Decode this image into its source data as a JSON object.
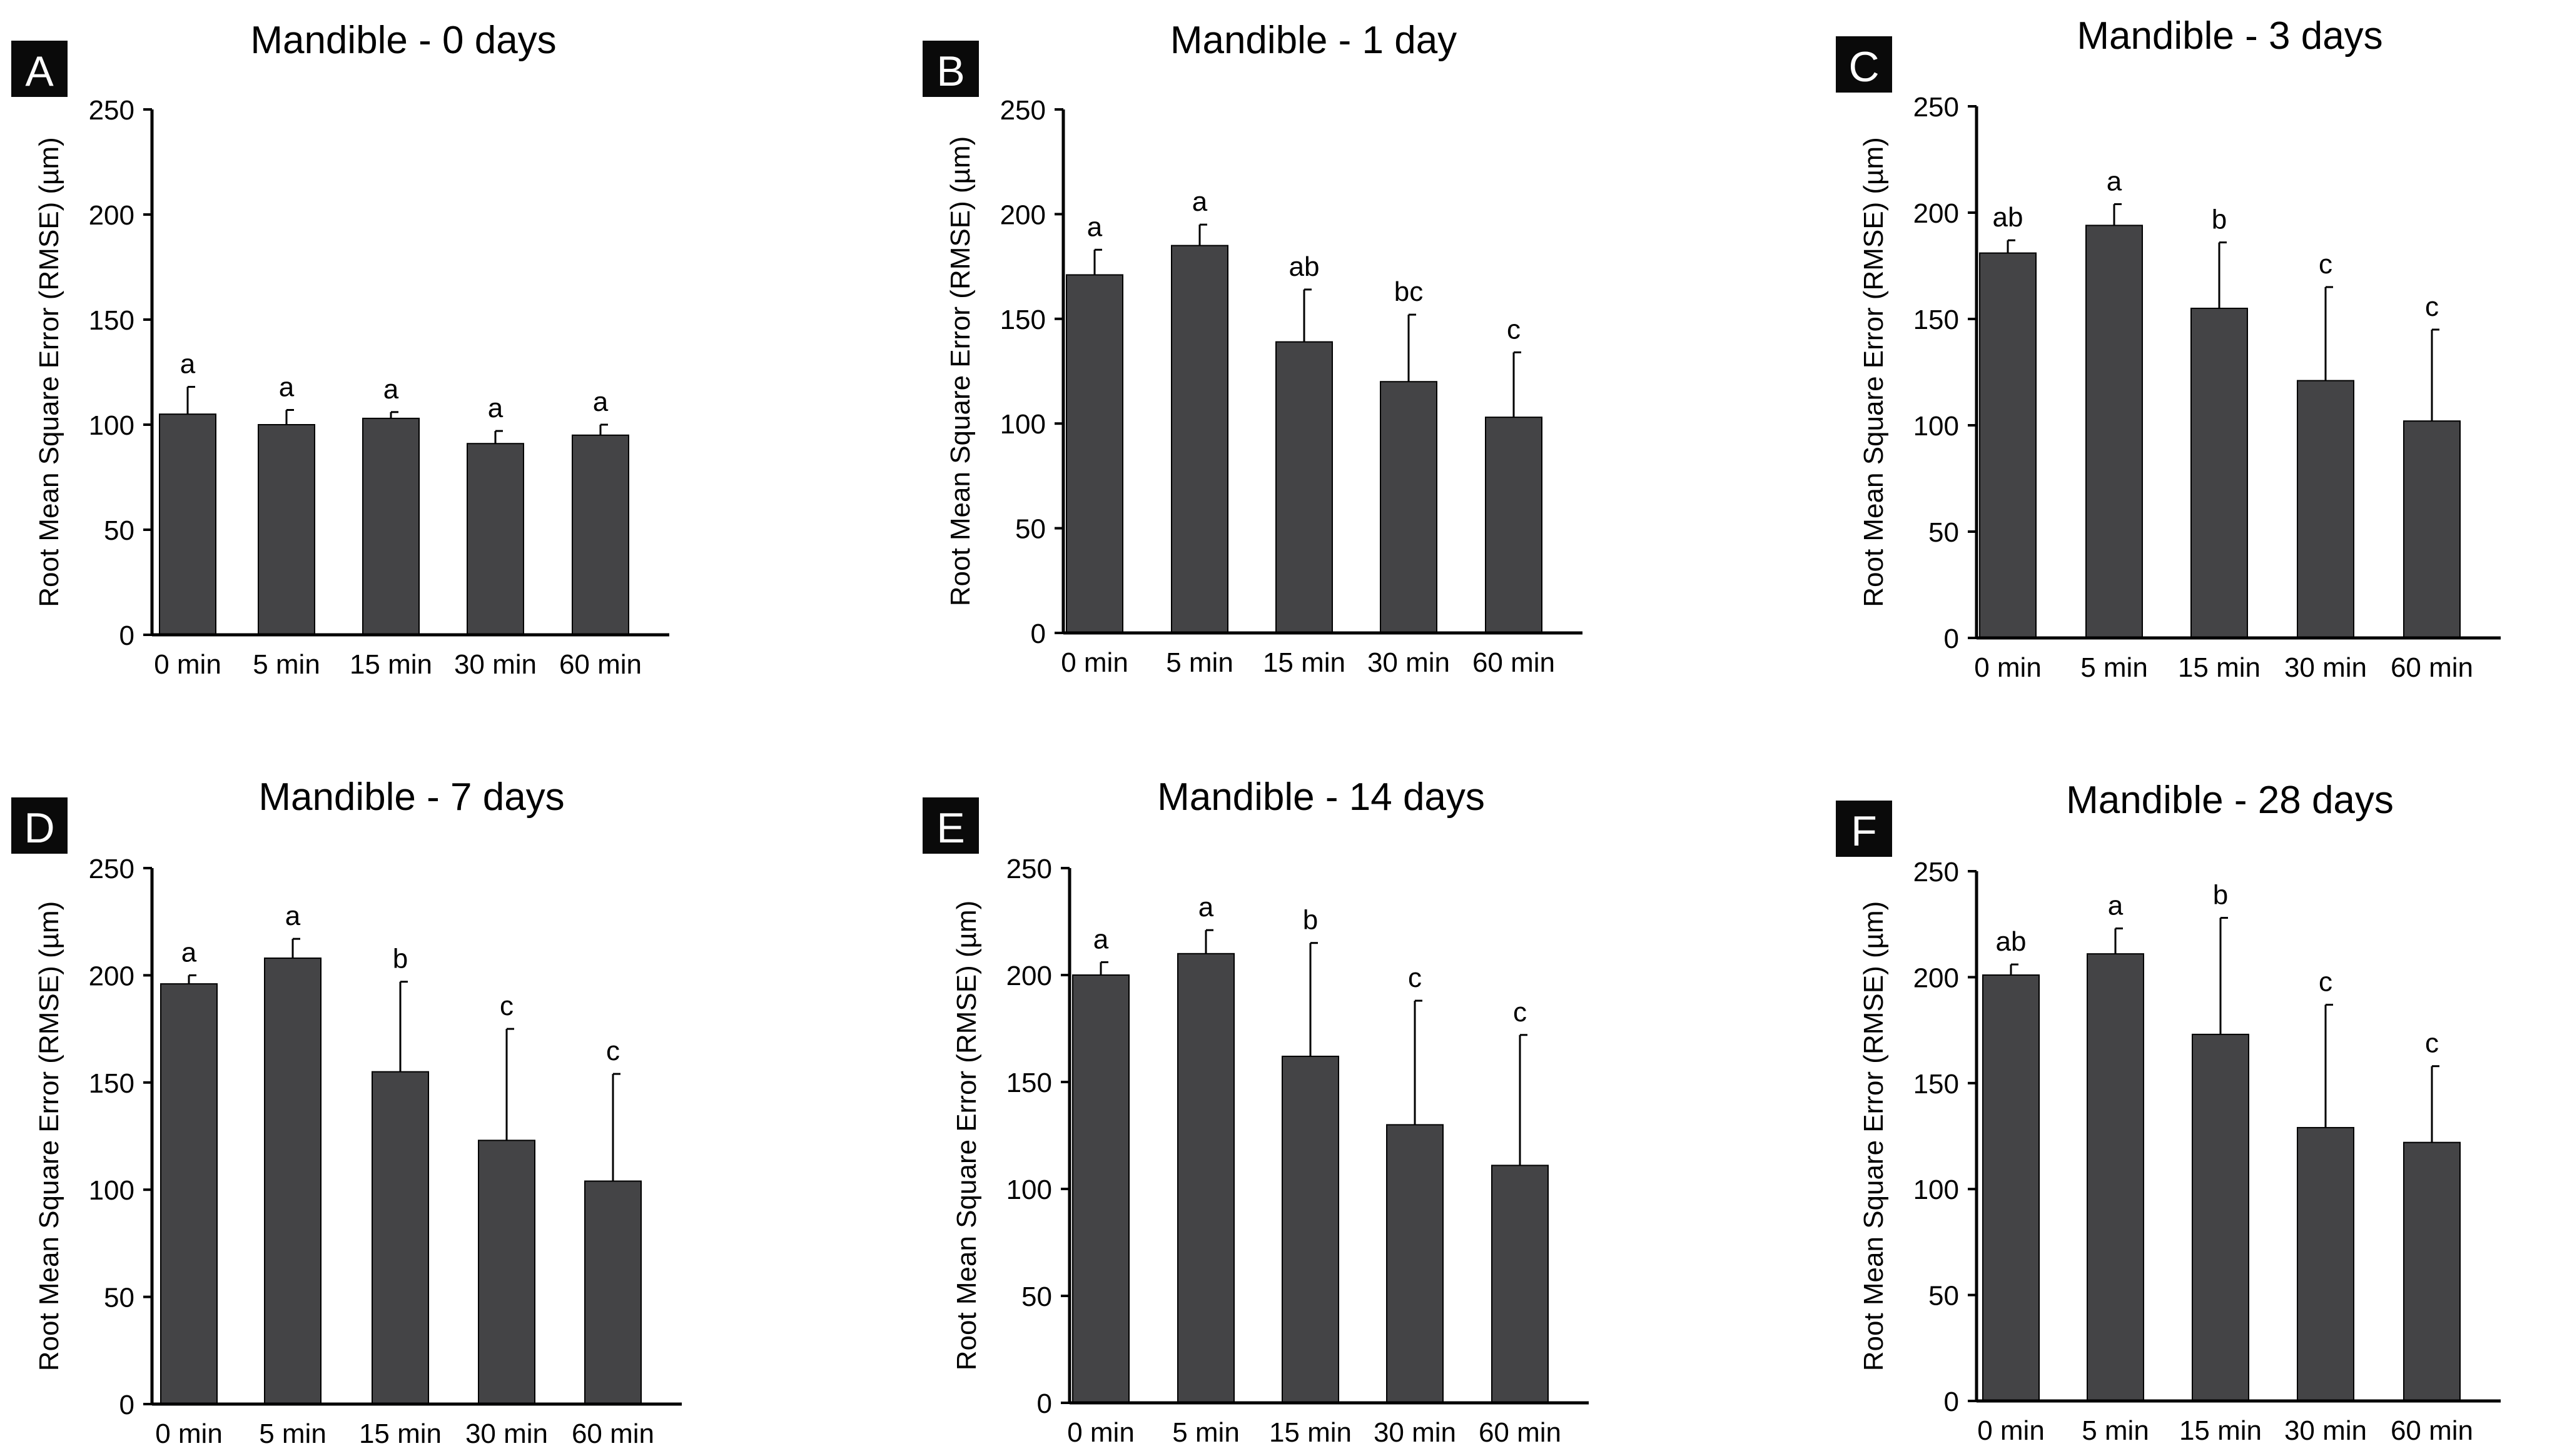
{
  "figure": {
    "colors": {
      "bar": "#444446",
      "axis": "#000000",
      "label_bg": "#0a0a0a",
      "label_fg": "#ffffff",
      "text": "#000000"
    }
  },
  "chart_data": [
    {
      "panel": "A",
      "type": "bar",
      "title": "Mandible - 0 days",
      "ylabel": "Root Mean Square Error (RMSE) (µm)",
      "xlabel": "",
      "categories": [
        "0 min",
        "5 min",
        "15 min",
        "30 min",
        "60 min"
      ],
      "values": [
        105,
        100,
        103,
        91,
        95
      ],
      "errors": [
        13,
        7,
        3,
        6,
        5
      ],
      "significance": [
        "a",
        "a",
        "a",
        "a",
        "a"
      ],
      "ylim": [
        0,
        250
      ],
      "yticks": [
        0,
        50,
        100,
        150,
        200,
        250
      ],
      "grid": false,
      "legend": "none"
    },
    {
      "panel": "B",
      "type": "bar",
      "title": "Mandible - 1 day",
      "ylabel": "Root Mean Square Error (RMSE) (µm)",
      "xlabel": "",
      "categories": [
        "0 min",
        "5 min",
        "15 min",
        "30 min",
        "60 min"
      ],
      "values": [
        171,
        185,
        139,
        120,
        103
      ],
      "errors": [
        12,
        10,
        25,
        32,
        31
      ],
      "significance": [
        "a",
        "a",
        "ab",
        "bc",
        "c"
      ],
      "ylim": [
        0,
        250
      ],
      "yticks": [
        0,
        50,
        100,
        150,
        200,
        250
      ],
      "grid": false,
      "legend": "none"
    },
    {
      "panel": "C",
      "type": "bar",
      "title": "Mandible - 3 days",
      "ylabel": "Root Mean Square Error (RMSE) (µm)",
      "xlabel": "",
      "categories": [
        "0 min",
        "5 min",
        "15 min",
        "30 min",
        "60 min"
      ],
      "values": [
        181,
        194,
        155,
        121,
        102
      ],
      "errors": [
        6,
        10,
        31,
        44,
        43
      ],
      "significance": [
        "ab",
        "a",
        "b",
        "c",
        "c"
      ],
      "ylim": [
        0,
        250
      ],
      "yticks": [
        0,
        50,
        100,
        150,
        200,
        250
      ],
      "grid": false,
      "legend": "none"
    },
    {
      "panel": "D",
      "type": "bar",
      "title": "Mandible - 7 days",
      "ylabel": "Root Mean Square Error (RMSE) (µm)",
      "xlabel": "",
      "categories": [
        "0 min",
        "5 min",
        "15 min",
        "30 min",
        "60 min"
      ],
      "values": [
        196,
        208,
        155,
        123,
        104
      ],
      "errors": [
        4,
        9,
        42,
        52,
        50
      ],
      "significance": [
        "a",
        "a",
        "b",
        "c",
        "c"
      ],
      "ylim": [
        0,
        250
      ],
      "yticks": [
        0,
        50,
        100,
        150,
        200,
        250
      ],
      "grid": false,
      "legend": "none"
    },
    {
      "panel": "E",
      "type": "bar",
      "title": "Mandible - 14 days",
      "ylabel": "Root Mean Square Error (RMSE) (µm)",
      "xlabel": "",
      "categories": [
        "0 min",
        "5 min",
        "15 min",
        "30 min",
        "60 min"
      ],
      "values": [
        200,
        210,
        162,
        130,
        111
      ],
      "errors": [
        6,
        11,
        53,
        58,
        61
      ],
      "significance": [
        "a",
        "a",
        "b",
        "c",
        "c"
      ],
      "ylim": [
        0,
        250
      ],
      "yticks": [
        0,
        50,
        100,
        150,
        200,
        250
      ],
      "grid": false,
      "legend": "none"
    },
    {
      "panel": "F",
      "type": "bar",
      "title": "Mandible - 28 days",
      "ylabel": "Root Mean Square Error (RMSE) (µm)",
      "xlabel": "",
      "categories": [
        "0 min",
        "5 min",
        "15 min",
        "30 min",
        "60 min"
      ],
      "values": [
        201,
        211,
        173,
        129,
        122
      ],
      "errors": [
        5,
        12,
        55,
        58,
        36
      ],
      "significance": [
        "ab",
        "a",
        "b",
        "c",
        "c"
      ],
      "ylim": [
        0,
        250
      ],
      "yticks": [
        0,
        50,
        100,
        150,
        200,
        250
      ],
      "grid": false,
      "legend": "none"
    }
  ]
}
